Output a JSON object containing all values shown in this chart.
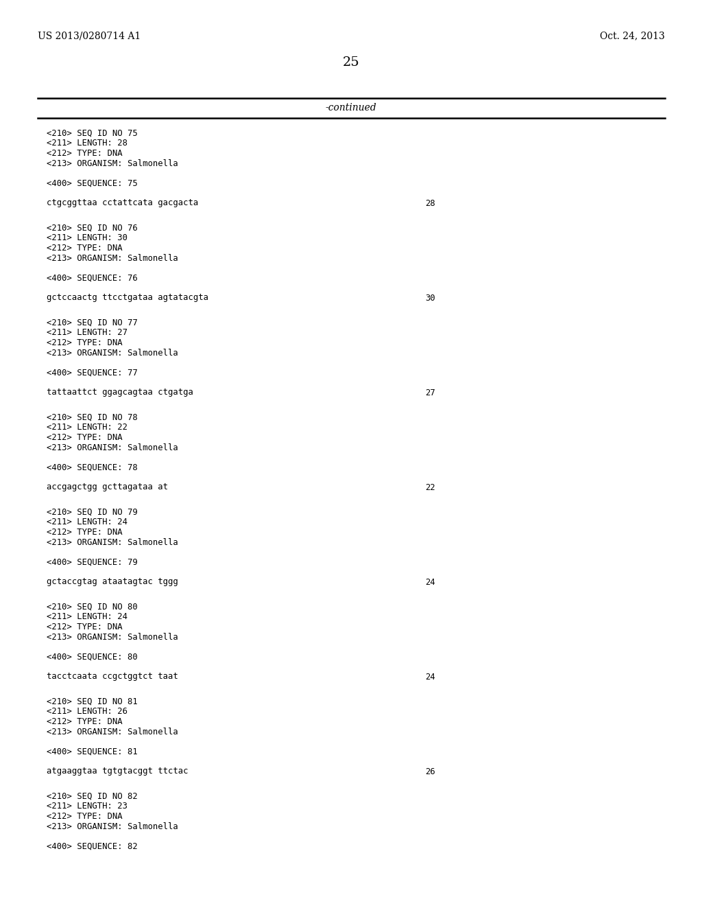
{
  "bg_color": "#ffffff",
  "header_left": "US 2013/0280714 A1",
  "header_right": "Oct. 24, 2013",
  "page_number": "25",
  "continued_label": "-continued",
  "sequences": [
    {
      "seq_id": "75",
      "length": "28",
      "type": "DNA",
      "organism": "Salmonella",
      "sequence_text": "ctgcggttaa cctattcata gacgacta",
      "seq_length_num": "28"
    },
    {
      "seq_id": "76",
      "length": "30",
      "type": "DNA",
      "organism": "Salmonella",
      "sequence_text": "gctccaactg ttcctgataa agtatacgta",
      "seq_length_num": "30"
    },
    {
      "seq_id": "77",
      "length": "27",
      "type": "DNA",
      "organism": "Salmonella",
      "sequence_text": "tattaattct ggagcagtaa ctgatga",
      "seq_length_num": "27"
    },
    {
      "seq_id": "78",
      "length": "22",
      "type": "DNA",
      "organism": "Salmonella",
      "sequence_text": "accgagctgg gcttagataa at",
      "seq_length_num": "22"
    },
    {
      "seq_id": "79",
      "length": "24",
      "type": "DNA",
      "organism": "Salmonella",
      "sequence_text": "gctaccgtag ataatagtac tggg",
      "seq_length_num": "24"
    },
    {
      "seq_id": "80",
      "length": "24",
      "type": "DNA",
      "organism": "Salmonella",
      "sequence_text": "tacctcaata ccgctggtct taat",
      "seq_length_num": "24"
    },
    {
      "seq_id": "81",
      "length": "26",
      "type": "DNA",
      "organism": "Salmonella",
      "sequence_text": "atgaaggtaa tgtgtacggt ttctac",
      "seq_length_num": "26"
    },
    {
      "seq_id": "82",
      "length": "23",
      "type": "DNA",
      "organism": "Salmonella",
      "sequence_text": "",
      "seq_length_num": "23"
    }
  ]
}
